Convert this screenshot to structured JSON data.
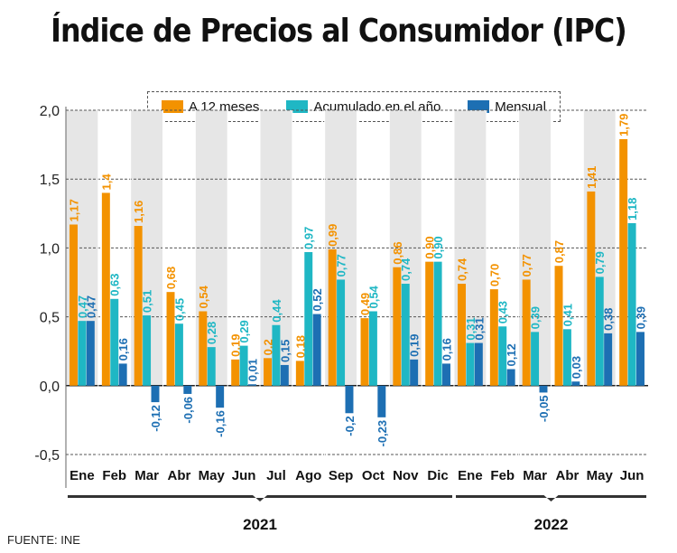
{
  "title": "Índice de Precios al Consumidor (IPC)",
  "source": "FUENTE: INE",
  "chart_data": {
    "type": "bar",
    "title": "Índice de Precios al Consumidor (IPC)",
    "categories": [
      "Ene",
      "Feb",
      "Mar",
      "Abr",
      "May",
      "Jun",
      "Jul",
      "Ago",
      "Sep",
      "Oct",
      "Nov",
      "Dic",
      "Ene",
      "Feb",
      "Mar",
      "Abr",
      "May",
      "Jun"
    ],
    "year_groups": [
      {
        "label": "2021",
        "from": 0,
        "to": 11
      },
      {
        "label": "2022",
        "from": 12,
        "to": 17
      }
    ],
    "series": [
      {
        "name": "A 12 meses",
        "color": "#f39200",
        "values": [
          1.17,
          1.4,
          1.16,
          0.68,
          0.54,
          0.19,
          0.2,
          0.18,
          0.99,
          0.49,
          0.86,
          0.9,
          0.74,
          0.7,
          0.77,
          0.87,
          1.41,
          1.79
        ],
        "labels": [
          "1,17",
          "1,4",
          "1,16",
          "0,68",
          "0,54",
          "0,19",
          "0,2",
          "0,18",
          "0,99",
          "0,49",
          "0,86",
          "0,90",
          "0,74",
          "0,70",
          "0,77",
          "0,87",
          "1,41",
          "1,79"
        ]
      },
      {
        "name": "Acumulado en el año",
        "color": "#1fb7c4",
        "values": [
          0.47,
          0.63,
          0.51,
          0.45,
          0.28,
          0.29,
          0.44,
          0.97,
          0.77,
          0.54,
          0.74,
          0.9,
          0.31,
          0.43,
          0.39,
          0.41,
          0.79,
          1.18
        ],
        "labels": [
          "0,47",
          "0,63",
          "0,51",
          "0,45",
          "0,28",
          "0,29",
          "0,44",
          "0,97",
          "0,77",
          "0,54",
          "0,74",
          "0,90",
          "0,31",
          "0,43",
          "0,39",
          "0,41",
          "0,79",
          "1,18"
        ]
      },
      {
        "name": "Mensual",
        "color": "#1d6fb3",
        "values": [
          0.47,
          0.16,
          -0.12,
          -0.06,
          -0.16,
          0.01,
          0.15,
          0.52,
          -0.2,
          -0.23,
          0.19,
          0.16,
          0.31,
          0.12,
          -0.05,
          0.03,
          0.38,
          0.39
        ],
        "labels": [
          "0,47",
          "0,16",
          "-0,12",
          "-0,06",
          "-0,16",
          "0,01",
          "0,15",
          "0,52",
          "-0,2",
          "-0,23",
          "0,19",
          "0,16",
          "0,31",
          "0,12",
          "-0,05",
          "0,03",
          "0,38",
          "0,39"
        ]
      }
    ],
    "y_ticks": [
      -0.5,
      0.0,
      0.5,
      1.0,
      1.5,
      2.0
    ],
    "y_tick_labels": [
      "-0,5",
      "0,0",
      "0,5",
      "1,0",
      "1,5",
      "2,0"
    ],
    "ylim": [
      -0.5,
      2.0
    ],
    "grid": true,
    "legend_position": "top-center"
  }
}
